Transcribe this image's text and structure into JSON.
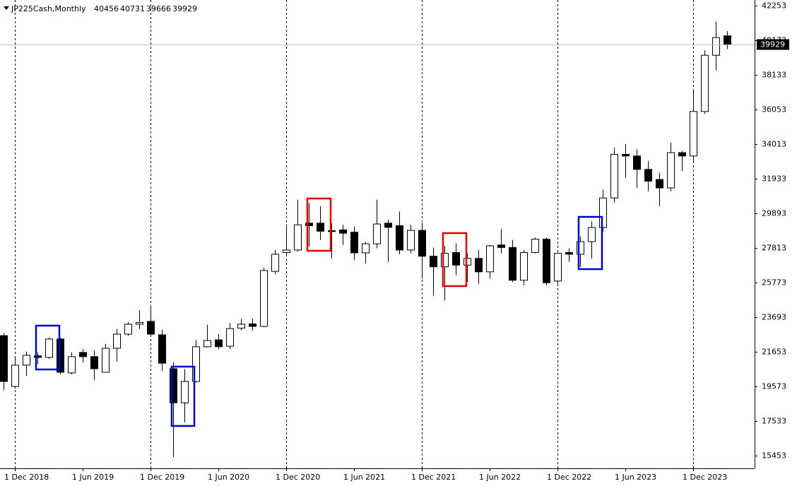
{
  "chart_data": {
    "type": "candlestick",
    "title": "JP225Cash,Monthly",
    "categories": [
      null,
      "1 Dec 2018",
      null,
      null,
      null,
      null,
      null,
      "1 Jun 2019",
      null,
      null,
      null,
      null,
      null,
      "1 Dec 2019",
      null,
      null,
      null,
      null,
      null,
      "1 Jun 2020",
      null,
      null,
      null,
      null,
      null,
      "1 Dec 2020",
      null,
      null,
      null,
      null,
      null,
      "1 Jun 2021",
      null,
      null,
      null,
      null,
      null,
      "1 Dec 2021",
      null,
      null,
      null,
      null,
      null,
      "1 Jun 2022",
      null,
      null,
      null,
      null,
      null,
      "1 Dec 2022",
      null,
      null,
      null,
      null,
      null,
      "1 Jun 2023",
      null,
      null,
      null,
      null,
      null,
      "1 Dec 2023",
      null,
      null,
      null
    ],
    "open": [
      22600,
      19573,
      20840,
      21400,
      21300,
      22400,
      20380,
      21600,
      21350,
      20420,
      21850,
      22690,
      23280,
      23450,
      22650,
      20630,
      18600,
      19870,
      21940,
      22350,
      21970,
      23050,
      23300,
      23150,
      26430,
      27550,
      27700,
      29300,
      29300,
      28850,
      28900,
      28760,
      27530,
      28070,
      29300,
      29150,
      27700,
      28870,
      27330,
      26700,
      27550,
      26800,
      27200,
      26400,
      28000,
      27850,
      25900,
      27550,
      28350,
      25850,
      27550,
      27450,
      28200,
      29040,
      30800,
      33400,
      33300,
      32500,
      31900,
      31400,
      33500,
      33300,
      35950,
      39300,
      40456
    ],
    "high": [
      22750,
      21340,
      21650,
      21600,
      22480,
      22480,
      21600,
      21800,
      21700,
      22100,
      23000,
      23400,
      24100,
      24300,
      22950,
      21000,
      20600,
      22350,
      23250,
      22700,
      23350,
      23600,
      23600,
      26650,
      27700,
      29200,
      30700,
      30500,
      30300,
      29300,
      29200,
      29100,
      28200,
      30700,
      29500,
      30000,
      29200,
      29300,
      27850,
      27950,
      28100,
      27500,
      27700,
      28000,
      28950,
      28300,
      27700,
      28450,
      28450,
      27550,
      27800,
      28500,
      29400,
      31300,
      33800,
      34000,
      33700,
      33000,
      32300,
      34100,
      33600,
      37200,
      39600,
      41300,
      40731
    ],
    "low": [
      19350,
      19450,
      20210,
      20900,
      21220,
      20300,
      20300,
      21000,
      19950,
      20400,
      21050,
      22600,
      23000,
      22650,
      20500,
      15370,
      17430,
      19800,
      21900,
      21800,
      21800,
      22900,
      22900,
      23100,
      26250,
      27400,
      27600,
      27900,
      28300,
      27200,
      28000,
      27100,
      26900,
      27800,
      27000,
      27450,
      27500,
      26000,
      25000,
      24700,
      26200,
      25800,
      25700,
      26000,
      27500,
      25800,
      25600,
      27500,
      25600,
      25700,
      27000,
      26700,
      27200,
      28800,
      30500,
      32000,
      31400,
      31200,
      30300,
      31200,
      32400,
      32900,
      35800,
      38400,
      39666
    ],
    "close": [
      19870,
      20840,
      21430,
      21300,
      22400,
      20420,
      21350,
      21350,
      20630,
      21850,
      22690,
      23280,
      23380,
      22690,
      20960,
      18600,
      19870,
      21940,
      22310,
      21940,
      23020,
      23280,
      23150,
      26480,
      27450,
      27700,
      29200,
      29150,
      28820,
      28800,
      28700,
      27530,
      28070,
      29250,
      29050,
      27700,
      28870,
      27330,
      26700,
      27500,
      26800,
      27200,
      26400,
      27950,
      27850,
      25900,
      27550,
      28350,
      25750,
      27500,
      27450,
      28200,
      29040,
      30800,
      33400,
      33300,
      32500,
      31800,
      31400,
      33500,
      33300,
      35950,
      39300,
      40350,
      39929
    ],
    "up_color": "#ffffff",
    "down_color": "#000000",
    "ylim": [
      14697,
      42590
    ],
    "yticks": [
      42253,
      40173,
      38133,
      36053,
      34013,
      31933,
      29893,
      27813,
      25773,
      23693,
      21653,
      19573,
      17533,
      15453
    ],
    "period_separators": true,
    "price_line": true
  }
}
